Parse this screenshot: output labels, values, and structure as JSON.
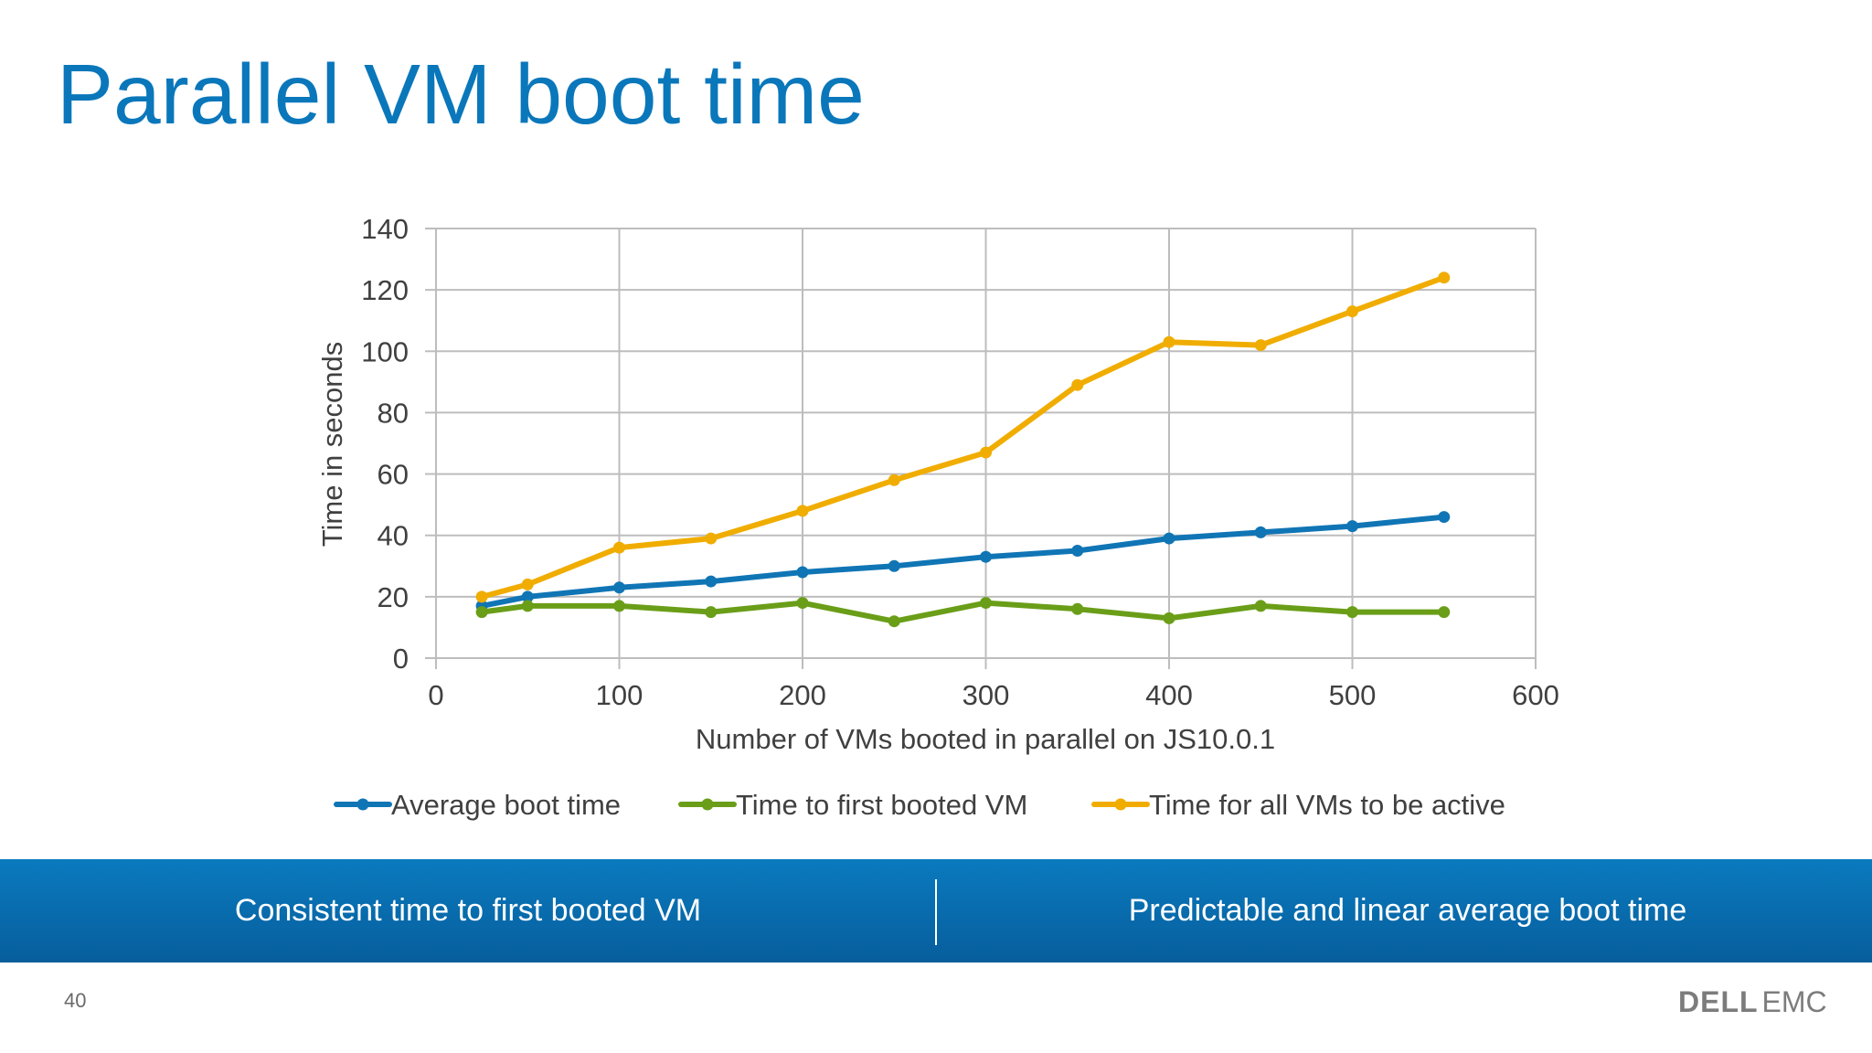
{
  "slide": {
    "title": "Parallel VM boot time",
    "page_number": "40",
    "logo_text": {
      "dell": "DELL",
      "emc": "EMC"
    }
  },
  "banner": {
    "left_text": "Consistent time to first booted VM",
    "right_text": "Predictable and linear average boot time"
  },
  "colors": {
    "title": "#0a77bb",
    "banner": "#0a7abf",
    "series": [
      "#1075b5",
      "#6a9e18",
      "#f0ad00"
    ],
    "grid": "#bdbdbd"
  },
  "chart_data": {
    "type": "line",
    "title": "",
    "xlabel": "Number of VMs booted in parallel on JS10.0.1",
    "ylabel": "Time in seconds",
    "xlim": [
      0,
      600
    ],
    "ylim": [
      0,
      140
    ],
    "x_ticks": [
      0,
      100,
      200,
      300,
      400,
      500,
      600
    ],
    "y_ticks": [
      0,
      20,
      40,
      60,
      80,
      100,
      120,
      140
    ],
    "grid": true,
    "legend_position": "bottom",
    "x": [
      25,
      50,
      100,
      150,
      200,
      250,
      300,
      350,
      400,
      450,
      500,
      550
    ],
    "series": [
      {
        "name": "Average boot time",
        "color": "#1075b5",
        "values": [
          17,
          20,
          23,
          25,
          28,
          30,
          33,
          35,
          39,
          41,
          43,
          46
        ]
      },
      {
        "name": "Time to first booted VM",
        "color": "#6a9e18",
        "values": [
          15,
          17,
          17,
          15,
          18,
          12,
          18,
          16,
          13,
          17,
          15,
          15
        ]
      },
      {
        "name": "Time for all VMs to be active",
        "color": "#f0ad00",
        "values": [
          20,
          24,
          36,
          39,
          48,
          58,
          67,
          89,
          103,
          102,
          113,
          124
        ]
      }
    ]
  }
}
